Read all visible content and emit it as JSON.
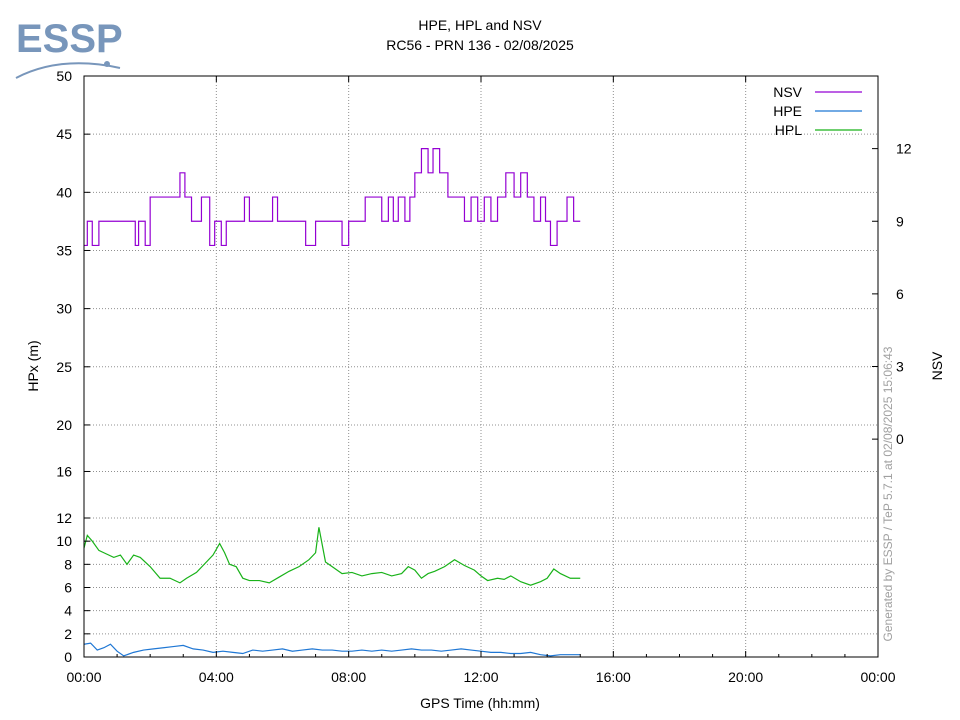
{
  "logo": {
    "text": "ESSP",
    "color": "#7896bb"
  },
  "chart_data": {
    "type": "line",
    "title": "HPE, HPL and NSV",
    "subtitle": "RC56 - PRN 136 - 02/08/2025",
    "xlabel": "GPS Time (hh:mm)",
    "ylabel": "HPx (m)",
    "y2label": "NSV",
    "watermark": "Generated by ESSP / TeP 5.7.1 at 02/08/2025 15:06:43",
    "grid": true,
    "legend_position": "top-right",
    "x_ticks": [
      "00:00",
      "04:00",
      "08:00",
      "12:00",
      "16:00",
      "20:00",
      "00:00"
    ],
    "x_range_hours": [
      0,
      24
    ],
    "y_left": {
      "ticks": [
        0,
        2,
        4,
        6,
        8,
        10,
        12,
        16,
        20,
        25,
        30,
        35,
        40,
        45,
        50
      ],
      "scale": "piecewise: 0-12 linear, 12-50 linear with compressed lower segment"
    },
    "y_right": {
      "ticks": [
        0,
        3,
        6,
        9,
        12
      ],
      "range": [
        -9,
        15
      ]
    },
    "series": [
      {
        "name": "NSV",
        "axis": "right",
        "color": "#9400d3",
        "x_hours": [
          0.0,
          0.1,
          0.25,
          0.45,
          1.2,
          1.55,
          1.65,
          1.85,
          2.0,
          2.3,
          2.6,
          2.9,
          3.05,
          3.25,
          3.55,
          3.8,
          3.95,
          4.15,
          4.3,
          4.55,
          4.7,
          4.85,
          5.0,
          5.2,
          5.5,
          5.7,
          5.85,
          6.1,
          6.4,
          6.7,
          7.0,
          7.3,
          7.6,
          7.8,
          8.0,
          8.15,
          8.3,
          8.5,
          8.7,
          9.0,
          9.2,
          9.35,
          9.5,
          9.7,
          9.85,
          10.0,
          10.2,
          10.4,
          10.55,
          10.75,
          11.0,
          11.3,
          11.5,
          11.7,
          11.9,
          12.1,
          12.3,
          12.5,
          12.75,
          13.0,
          13.2,
          13.4,
          13.6,
          13.8,
          13.95,
          14.1,
          14.3,
          14.6,
          14.8,
          15.0
        ],
        "values": [
          8,
          9,
          8,
          9,
          9,
          8,
          9,
          8,
          10,
          10,
          10,
          11,
          10,
          9,
          10,
          8,
          9,
          8,
          9,
          9,
          9,
          10,
          9,
          9,
          9,
          10,
          9,
          9,
          9,
          8,
          9,
          9,
          9,
          8,
          9,
          9,
          9,
          10,
          10,
          9,
          10,
          9,
          10,
          9,
          10,
          11,
          12,
          11,
          12,
          11,
          10,
          10,
          9,
          10,
          9,
          10,
          9,
          10,
          11,
          10,
          11,
          10,
          9,
          10,
          9,
          8,
          9,
          10,
          9,
          9
        ]
      },
      {
        "name": "HPE",
        "axis": "left",
        "color": "#1f77d4",
        "x_hours": [
          0.0,
          0.2,
          0.4,
          0.6,
          0.8,
          1.0,
          1.2,
          1.5,
          1.8,
          2.1,
          2.4,
          2.7,
          3.0,
          3.3,
          3.6,
          3.9,
          4.2,
          4.5,
          4.8,
          5.1,
          5.4,
          5.7,
          6.0,
          6.3,
          6.6,
          6.9,
          7.2,
          7.5,
          7.8,
          8.1,
          8.4,
          8.7,
          9.0,
          9.3,
          9.6,
          9.9,
          10.2,
          10.5,
          10.8,
          11.1,
          11.4,
          11.7,
          12.0,
          12.3,
          12.6,
          12.9,
          13.2,
          13.5,
          13.8,
          14.1,
          14.4,
          14.7,
          15.0
        ],
        "values": [
          1.1,
          1.2,
          0.6,
          0.8,
          1.1,
          0.5,
          0.1,
          0.4,
          0.6,
          0.7,
          0.8,
          0.9,
          1.0,
          0.7,
          0.6,
          0.4,
          0.5,
          0.4,
          0.3,
          0.6,
          0.5,
          0.6,
          0.7,
          0.5,
          0.6,
          0.7,
          0.6,
          0.6,
          0.5,
          0.5,
          0.6,
          0.5,
          0.6,
          0.5,
          0.6,
          0.7,
          0.6,
          0.6,
          0.5,
          0.6,
          0.7,
          0.6,
          0.5,
          0.4,
          0.4,
          0.3,
          0.3,
          0.4,
          0.2,
          0.1,
          0.2,
          0.2,
          0.2
        ]
      },
      {
        "name": "HPL",
        "axis": "left",
        "color": "#19b219",
        "x_hours": [
          0.0,
          0.1,
          0.25,
          0.45,
          0.6,
          0.9,
          1.1,
          1.3,
          1.5,
          1.7,
          2.0,
          2.3,
          2.6,
          2.9,
          3.1,
          3.4,
          3.7,
          3.9,
          4.1,
          4.25,
          4.4,
          4.6,
          4.8,
          5.0,
          5.3,
          5.6,
          5.9,
          6.2,
          6.5,
          6.8,
          7.0,
          7.1,
          7.3,
          7.5,
          7.8,
          8.1,
          8.4,
          8.7,
          9.0,
          9.3,
          9.6,
          9.8,
          10.0,
          10.2,
          10.4,
          10.6,
          10.9,
          11.2,
          11.5,
          11.8,
          12.0,
          12.2,
          12.5,
          12.7,
          12.9,
          13.2,
          13.5,
          13.8,
          14.0,
          14.2,
          14.4,
          14.7,
          15.0
        ],
        "values": [
          9.4,
          10.5,
          10.0,
          9.2,
          9.0,
          8.6,
          8.8,
          8.0,
          8.8,
          8.6,
          7.8,
          6.8,
          6.8,
          6.4,
          6.8,
          7.3,
          8.2,
          8.8,
          9.8,
          9.0,
          8.0,
          7.8,
          6.8,
          6.6,
          6.6,
          6.4,
          6.9,
          7.4,
          7.8,
          8.4,
          9.0,
          11.2,
          8.2,
          7.8,
          7.2,
          7.3,
          7.0,
          7.2,
          7.3,
          7.0,
          7.2,
          7.8,
          7.5,
          6.8,
          7.2,
          7.4,
          7.8,
          8.4,
          7.9,
          7.5,
          7.0,
          6.6,
          6.8,
          6.7,
          7.0,
          6.5,
          6.2,
          6.5,
          6.8,
          7.6,
          7.2,
          6.8,
          6.8
        ]
      }
    ]
  }
}
